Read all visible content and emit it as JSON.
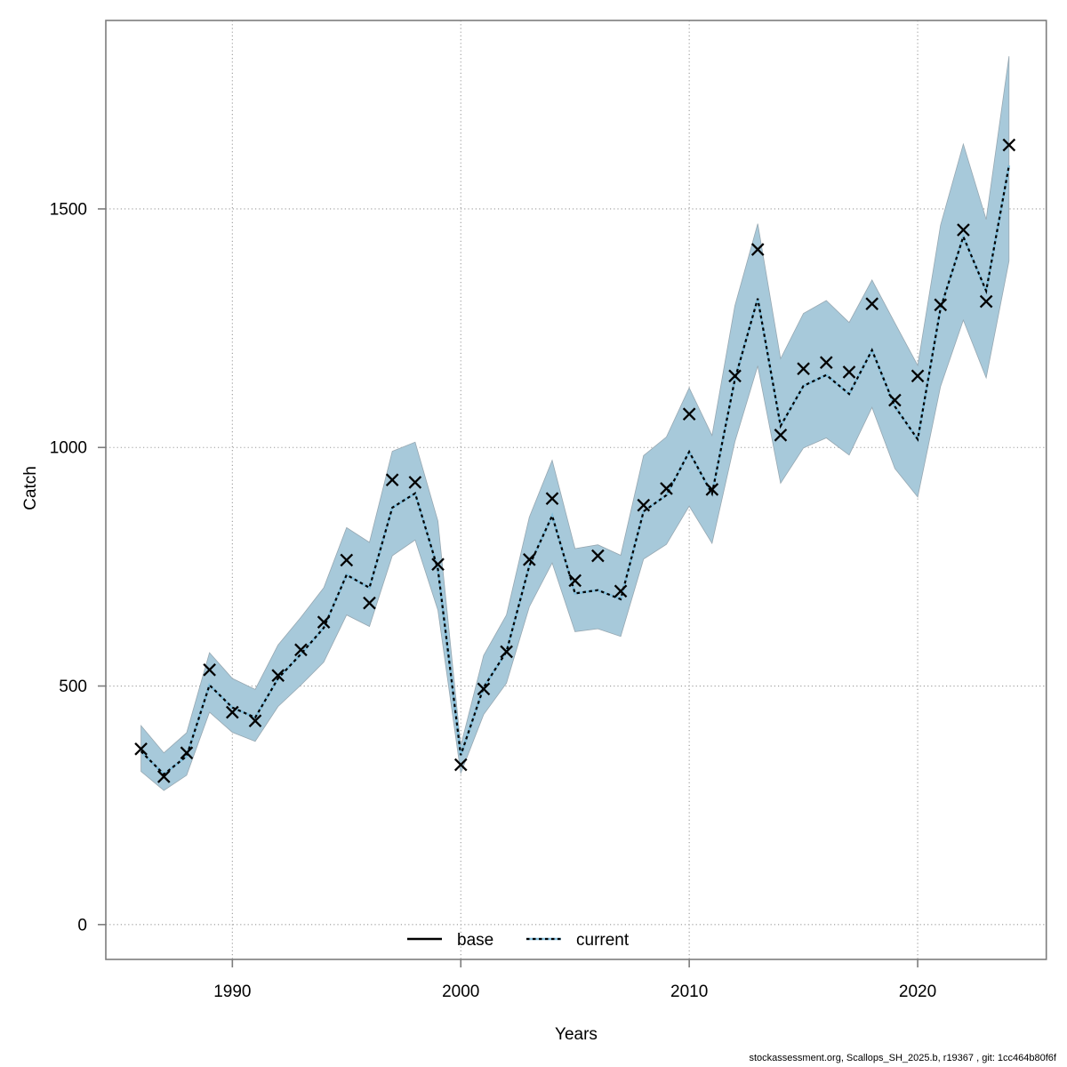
{
  "page": {
    "background": "#ffffff"
  },
  "labels": {
    "xlabel": "Years",
    "ylabel": "Catch"
  },
  "legend": {
    "position": "bottom-center-inside",
    "items": [
      {
        "label": "base",
        "style": "solid",
        "color": "#000000"
      },
      {
        "label": "current",
        "style": "dotted",
        "color": "#000000",
        "underlay_color": "#82bedb"
      }
    ]
  },
  "footer": {
    "text": "stockassessment.org, Scallops_SH_2025.b, r19367 , git: 1cc464b80f6f"
  },
  "chart_data": {
    "type": "line",
    "title": "",
    "xlabel": "Years",
    "ylabel": "Catch",
    "grid": true,
    "x_ticks": [
      1990,
      2000,
      2010,
      2020
    ],
    "x_tick_labels": [
      "1990",
      "2000",
      "2010",
      "2020"
    ],
    "y_ticks": [
      0,
      500,
      1000,
      1500
    ],
    "y_tick_labels": [
      "0",
      "500",
      "1000",
      "1500"
    ],
    "xlim": [
      1984.46,
      2025.63
    ],
    "ylim": [
      -73,
      1895
    ],
    "band_color": "#a7c9da",
    "band_edge_color": "#97a8b2",
    "grid_color": "#9b9b9b",
    "axis_color": "#7d7d7d",
    "marker": "x",
    "marker_color": "#000000",
    "years": [
      1986,
      1987,
      1988,
      1989,
      1990,
      1991,
      1992,
      1993,
      1994,
      1995,
      1996,
      1997,
      1998,
      1999,
      2000,
      2001,
      2002,
      2003,
      2004,
      2005,
      2006,
      2007,
      2008,
      2009,
      2010,
      2011,
      2012,
      2013,
      2014,
      2015,
      2016,
      2017,
      2018,
      2019,
      2020,
      2021,
      2022,
      2023,
      2024
    ],
    "series": [
      {
        "name": "base",
        "render": "x-markers",
        "values": [
          368,
          310,
          360,
          534,
          445,
          427,
          522,
          576,
          634,
          764,
          674,
          932,
          927,
          755,
          335,
          494,
          572,
          765,
          893,
          721,
          773,
          699,
          879,
          914,
          1070,
          912,
          1150,
          1415,
          1026,
          1165,
          1178,
          1158,
          1301,
          1099,
          1150,
          1299,
          1456,
          1306,
          1634
        ]
      },
      {
        "name": "current",
        "render": "dotted-line-with-band",
        "values": [
          363,
          315,
          353,
          502,
          455,
          434,
          516,
          567,
          622,
          733,
          706,
          874,
          904,
          745,
          355,
          497,
          572,
          752,
          857,
          694,
          701,
          682,
          866,
          900,
          991,
          903,
          1143,
          1312,
          1045,
          1129,
          1152,
          1112,
          1204,
          1086,
          1017,
          1292,
          1442,
          1328,
          1591
        ]
      }
    ],
    "band": {
      "lower": [
        321,
        281,
        313,
        445,
        403,
        384,
        457,
        502,
        550,
        649,
        625,
        773,
        806,
        659,
        317,
        440,
        506,
        666,
        758,
        614,
        620,
        604,
        766,
        797,
        877,
        799,
        1012,
        1171,
        925,
        999,
        1020,
        984,
        1084,
        956,
        896,
        1128,
        1267,
        1146,
        1391
      ],
      "upper": [
        417,
        360,
        402,
        570,
        516,
        493,
        586,
        644,
        706,
        832,
        801,
        992,
        1011,
        846,
        375,
        564,
        649,
        854,
        973,
        788,
        796,
        774,
        983,
        1022,
        1125,
        1025,
        1297,
        1469,
        1186,
        1281,
        1308,
        1262,
        1351,
        1261,
        1172,
        1466,
        1636,
        1478,
        1820
      ]
    }
  }
}
